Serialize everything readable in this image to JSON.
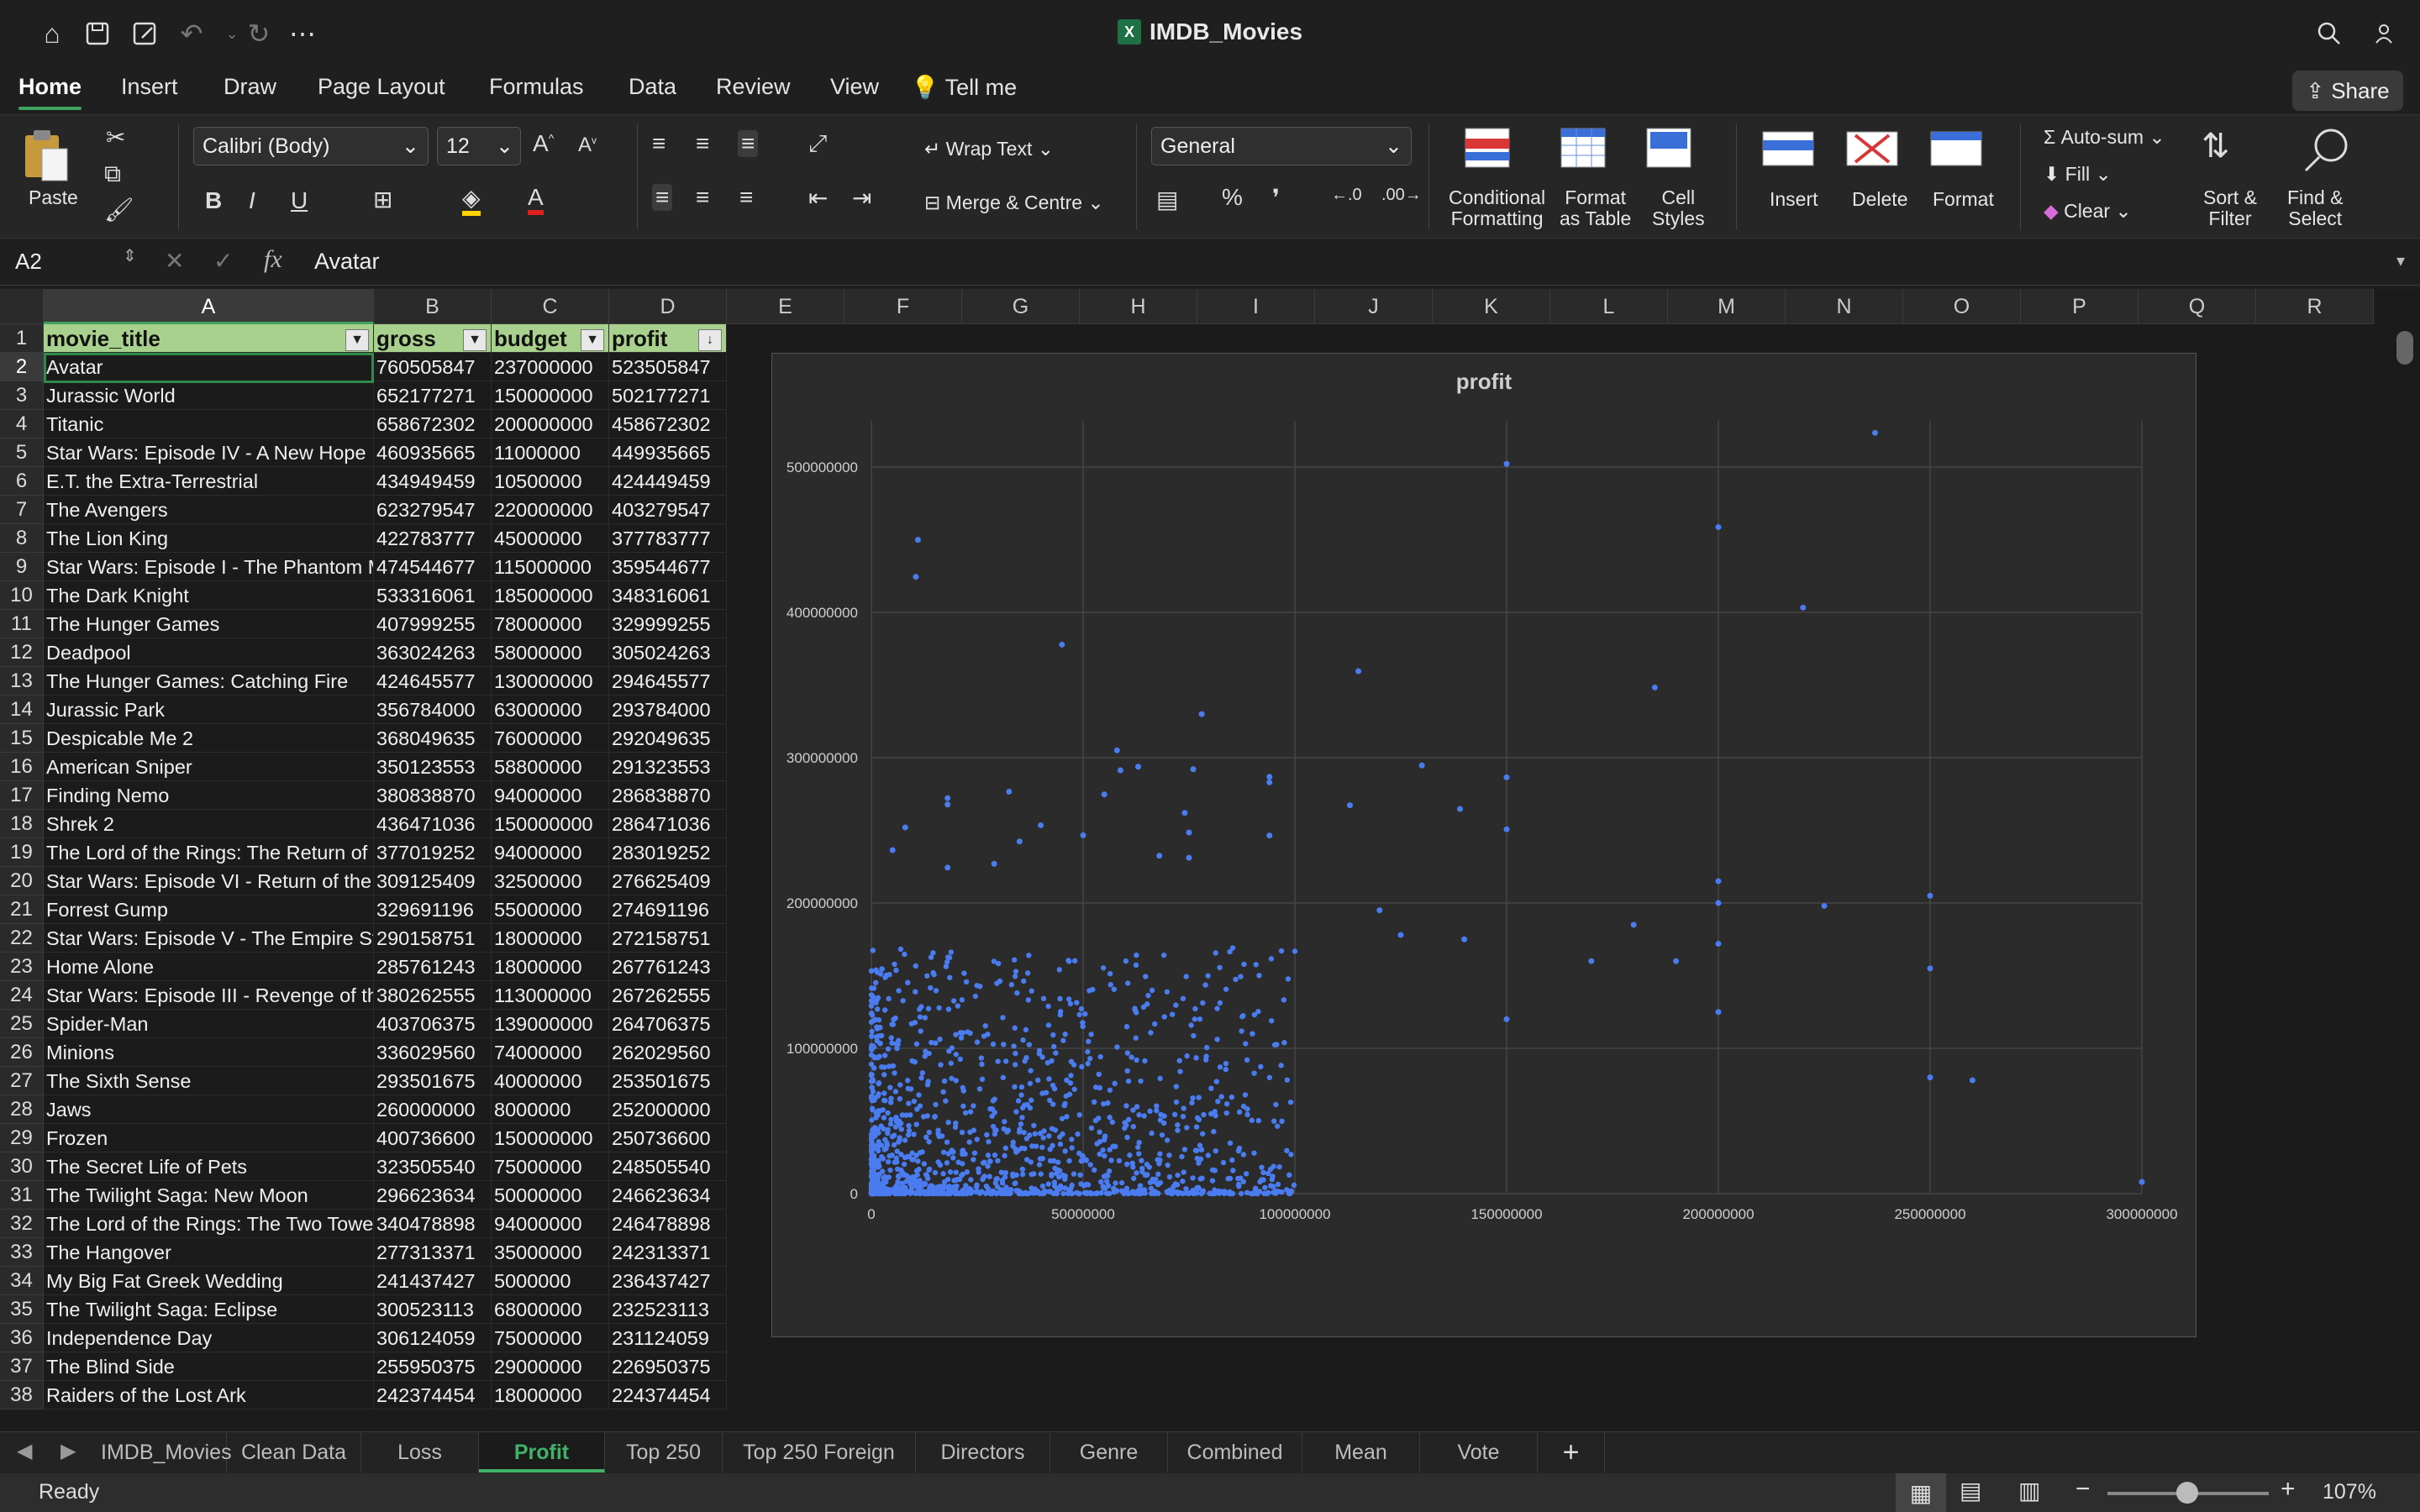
{
  "window": {
    "title": "IMDB_Movies"
  },
  "menu": {
    "tabs": [
      "Home",
      "Insert",
      "Draw",
      "Page Layout",
      "Formulas",
      "Data",
      "Review",
      "View"
    ],
    "tell_me": "Tell me",
    "share": "Share"
  },
  "ribbon": {
    "paste": "Paste",
    "font_name": "Calibri (Body)",
    "font_size": "12",
    "wrap_text": "Wrap Text",
    "merge": "Merge & Centre",
    "number_format": "General",
    "cond_format": [
      "Conditional",
      "Formatting"
    ],
    "format_table": [
      "Format",
      "as Table"
    ],
    "cell_styles": [
      "Cell",
      "Styles"
    ],
    "insert": "Insert",
    "delete": "Delete",
    "format": "Format",
    "autosum": "Auto-sum",
    "fill": "Fill",
    "clear": "Clear",
    "sort": [
      "Sort &",
      "Filter"
    ],
    "find": [
      "Find &",
      "Select"
    ]
  },
  "formula_bar": {
    "cell_ref": "A2",
    "fx": "fx",
    "content": "Avatar"
  },
  "columns": [
    "A",
    "B",
    "C",
    "D",
    "E",
    "F",
    "G",
    "H",
    "I",
    "J",
    "K",
    "L",
    "M",
    "N",
    "O",
    "P",
    "Q",
    "R"
  ],
  "table": {
    "headers": [
      "movie_title",
      "gross",
      "budget",
      "profit"
    ],
    "rows": [
      [
        "Avatar",
        "760505847",
        "237000000",
        "523505847"
      ],
      [
        "Jurassic World",
        "652177271",
        "150000000",
        "502177271"
      ],
      [
        "Titanic",
        "658672302",
        "200000000",
        "458672302"
      ],
      [
        "Star Wars: Episode IV - A New Hope",
        "460935665",
        "11000000",
        "449935665"
      ],
      [
        "E.T. the Extra-Terrestrial",
        "434949459",
        "10500000",
        "424449459"
      ],
      [
        "The Avengers",
        "623279547",
        "220000000",
        "403279547"
      ],
      [
        "The Lion King",
        "422783777",
        "45000000",
        "377783777"
      ],
      [
        "Star Wars: Episode I - The Phantom M",
        "474544677",
        "115000000",
        "359544677"
      ],
      [
        "The Dark Knight",
        "533316061",
        "185000000",
        "348316061"
      ],
      [
        "The Hunger Games",
        "407999255",
        "78000000",
        "329999255"
      ],
      [
        "Deadpool",
        "363024263",
        "58000000",
        "305024263"
      ],
      [
        "The Hunger Games: Catching Fire",
        "424645577",
        "130000000",
        "294645577"
      ],
      [
        "Jurassic Park",
        "356784000",
        "63000000",
        "293784000"
      ],
      [
        "Despicable Me 2",
        "368049635",
        "76000000",
        "292049635"
      ],
      [
        "American Sniper",
        "350123553",
        "58800000",
        "291323553"
      ],
      [
        "Finding Nemo",
        "380838870",
        "94000000",
        "286838870"
      ],
      [
        "Shrek 2",
        "436471036",
        "150000000",
        "286471036"
      ],
      [
        "The Lord of the Rings: The Return of",
        "377019252",
        "94000000",
        "283019252"
      ],
      [
        "Star Wars: Episode VI - Return of the",
        "309125409",
        "32500000",
        "276625409"
      ],
      [
        "Forrest Gump",
        "329691196",
        "55000000",
        "274691196"
      ],
      [
        "Star Wars: Episode V - The Empire Str",
        "290158751",
        "18000000",
        "272158751"
      ],
      [
        "Home Alone",
        "285761243",
        "18000000",
        "267761243"
      ],
      [
        "Star Wars: Episode III - Revenge of th",
        "380262555",
        "113000000",
        "267262555"
      ],
      [
        "Spider-Man",
        "403706375",
        "139000000",
        "264706375"
      ],
      [
        "Minions",
        "336029560",
        "74000000",
        "262029560"
      ],
      [
        "The Sixth Sense",
        "293501675",
        "40000000",
        "253501675"
      ],
      [
        "Jaws",
        "260000000",
        "8000000",
        "252000000"
      ],
      [
        "Frozen",
        "400736600",
        "150000000",
        "250736600"
      ],
      [
        "The Secret Life of Pets",
        "323505540",
        "75000000",
        "248505540"
      ],
      [
        "The Twilight Saga: New Moon",
        "296623634",
        "50000000",
        "246623634"
      ],
      [
        "The Lord of the Rings: The Two Towe",
        "340478898",
        "94000000",
        "246478898"
      ],
      [
        "The Hangover",
        "277313371",
        "35000000",
        "242313371"
      ],
      [
        "My Big Fat Greek Wedding",
        "241437427",
        "5000000",
        "236437427"
      ],
      [
        "The Twilight Saga: Eclipse",
        "300523113",
        "68000000",
        "232523113"
      ],
      [
        "Independence Day",
        "306124059",
        "75000000",
        "231124059"
      ],
      [
        "The Blind Side",
        "255950375",
        "29000000",
        "226950375"
      ],
      [
        "Raiders of the Lost Ark",
        "242374454",
        "18000000",
        "224374454"
      ]
    ]
  },
  "chart_data": {
    "type": "scatter",
    "title": "profit",
    "xlim": [
      0,
      300000000
    ],
    "ylim": [
      0,
      500000000
    ],
    "x_ticks": [
      "0",
      "50000000",
      "100000000",
      "150000000",
      "200000000",
      "250000000",
      "300000000"
    ],
    "y_ticks": [
      "0",
      "100000000",
      "200000000",
      "300000000",
      "400000000",
      "500000000"
    ],
    "grid": true,
    "point_color": "#4a7cf0",
    "points": [
      [
        237000000,
        523505847
      ],
      [
        150000000,
        502177271
      ],
      [
        200000000,
        458672302
      ],
      [
        11000000,
        449935665
      ],
      [
        10500000,
        424449459
      ],
      [
        220000000,
        403279547
      ],
      [
        45000000,
        377783777
      ],
      [
        115000000,
        359544677
      ],
      [
        185000000,
        348316061
      ],
      [
        78000000,
        329999255
      ],
      [
        58000000,
        305024263
      ],
      [
        130000000,
        294645577
      ],
      [
        63000000,
        293784000
      ],
      [
        76000000,
        292049635
      ],
      [
        58800000,
        291323553
      ],
      [
        94000000,
        286838870
      ],
      [
        150000000,
        286471036
      ],
      [
        94000000,
        283019252
      ],
      [
        32500000,
        276625409
      ],
      [
        55000000,
        274691196
      ],
      [
        18000000,
        272158751
      ],
      [
        18000000,
        267761243
      ],
      [
        113000000,
        267262555
      ],
      [
        139000000,
        264706375
      ],
      [
        74000000,
        262029560
      ],
      [
        40000000,
        253501675
      ],
      [
        8000000,
        252000000
      ],
      [
        150000000,
        250736600
      ],
      [
        75000000,
        248505540
      ],
      [
        50000000,
        246623634
      ],
      [
        94000000,
        246478898
      ],
      [
        35000000,
        242313371
      ],
      [
        5000000,
        236437427
      ],
      [
        68000000,
        232523113
      ],
      [
        75000000,
        231124059
      ],
      [
        29000000,
        226950375
      ],
      [
        18000000,
        224374454
      ],
      [
        200000000,
        215000000
      ],
      [
        250000000,
        205000000
      ],
      [
        200000000,
        200000000
      ],
      [
        225000000,
        198000000
      ],
      [
        180000000,
        185000000
      ],
      [
        120000000,
        195000000
      ],
      [
        250000000,
        155000000
      ],
      [
        200000000,
        172000000
      ],
      [
        170000000,
        160000000
      ],
      [
        140000000,
        175000000
      ],
      [
        125000000,
        178000000
      ],
      [
        300000000,
        8000000
      ],
      [
        250000000,
        80000000
      ],
      [
        260000000,
        78000000
      ],
      [
        190000000,
        160000000
      ],
      [
        150000000,
        120000000
      ],
      [
        200000000,
        125000000
      ]
    ]
  },
  "sheet_tabs": [
    "IMDB_Movies",
    "Clean Data",
    "Loss",
    "Profit",
    "Top 250",
    "Top 250 Foreign",
    "Directors",
    "Genre",
    "Combined",
    "Mean",
    "Vote"
  ],
  "active_sheet": "Profit",
  "status": {
    "ready": "Ready",
    "zoom": "107%"
  }
}
